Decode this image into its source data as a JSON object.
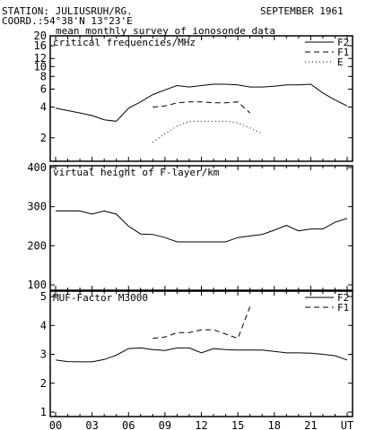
{
  "header": {
    "station": "STATION: JULIUSRUH/RG.",
    "date": "SEPTEMBER 1961",
    "coord": "COORD.:54°38'N 13°23'E",
    "subtitle": "mean monthly survey of ionosonde data"
  },
  "chart_data": [
    {
      "type": "line",
      "title": "critical frequencies/MHz",
      "scale": "log",
      "ylim": [
        1.5,
        20
      ],
      "yticks": [
        2,
        4,
        6,
        8,
        10,
        12,
        16,
        20
      ],
      "xlim": [
        0,
        24
      ],
      "series": [
        {
          "name": "F2",
          "style": "solid",
          "x": [
            0,
            1,
            2,
            3,
            4,
            5,
            6,
            7,
            8,
            9,
            10,
            11,
            12,
            13,
            14,
            15,
            16,
            17,
            18,
            19,
            20,
            21,
            22,
            23,
            24
          ],
          "y": [
            3.9,
            3.7,
            3.5,
            3.3,
            3.0,
            2.9,
            3.9,
            4.5,
            5.3,
            5.9,
            6.5,
            6.3,
            6.5,
            6.7,
            6.7,
            6.6,
            6.3,
            6.3,
            6.4,
            6.6,
            6.6,
            6.7,
            5.5,
            4.7,
            4.1
          ]
        },
        {
          "name": "F1",
          "style": "dashed",
          "x": [
            8,
            9,
            10,
            11,
            12,
            13,
            14,
            15,
            16
          ],
          "y": [
            4.0,
            4.1,
            4.4,
            4.5,
            4.5,
            4.4,
            4.4,
            4.5,
            3.5
          ]
        },
        {
          "name": "E",
          "style": "dotted",
          "x": [
            8,
            9,
            10,
            11,
            12,
            13,
            14,
            15,
            16,
            17
          ],
          "y": [
            1.8,
            2.2,
            2.6,
            2.9,
            2.9,
            2.9,
            2.9,
            2.8,
            2.5,
            2.2
          ]
        }
      ]
    },
    {
      "type": "line",
      "title": "virtual height of F-layer/km",
      "ylim": [
        100,
        400
      ],
      "yticks": [
        100,
        200,
        300,
        400
      ],
      "xlim": [
        0,
        24
      ],
      "series": [
        {
          "name": "F2",
          "style": "solid",
          "x": [
            0,
            1,
            2,
            3,
            4,
            5,
            6,
            7,
            8,
            9,
            10,
            11,
            12,
            13,
            14,
            15,
            16,
            17,
            18,
            19,
            20,
            21,
            22,
            23,
            24
          ],
          "y": [
            289,
            289,
            289,
            281,
            289,
            281,
            250,
            230,
            229,
            221,
            210,
            210,
            210,
            210,
            210,
            221,
            225,
            229,
            240,
            252,
            238,
            243,
            243,
            260,
            270
          ]
        }
      ]
    },
    {
      "type": "line",
      "title": "MUF-Factor M3000",
      "ylim": [
        1,
        5
      ],
      "yticks": [
        1,
        2,
        3,
        4,
        5
      ],
      "xlim": [
        0,
        24
      ],
      "xticks": [
        "00",
        "03",
        "06",
        "09",
        "12",
        "15",
        "18",
        "21",
        "UT"
      ],
      "series": [
        {
          "name": "F2",
          "style": "solid",
          "x": [
            0,
            1,
            2,
            3,
            4,
            5,
            6,
            7,
            8,
            9,
            10,
            11,
            12,
            13,
            14,
            15,
            16,
            17,
            18,
            19,
            20,
            21,
            22,
            23,
            24
          ],
          "y": [
            2.8,
            2.75,
            2.74,
            2.74,
            2.82,
            2.97,
            3.2,
            3.22,
            3.16,
            3.13,
            3.22,
            3.22,
            3.05,
            3.2,
            3.16,
            3.15,
            3.15,
            3.15,
            3.1,
            3.05,
            3.05,
            3.04,
            3.0,
            2.95,
            2.8
          ]
        },
        {
          "name": "F1",
          "style": "dashed",
          "x": [
            8,
            9,
            10,
            11,
            12,
            13,
            14,
            15,
            16
          ],
          "y": [
            3.55,
            3.6,
            3.75,
            3.75,
            3.85,
            3.85,
            3.7,
            3.55,
            4.65
          ]
        }
      ]
    }
  ]
}
